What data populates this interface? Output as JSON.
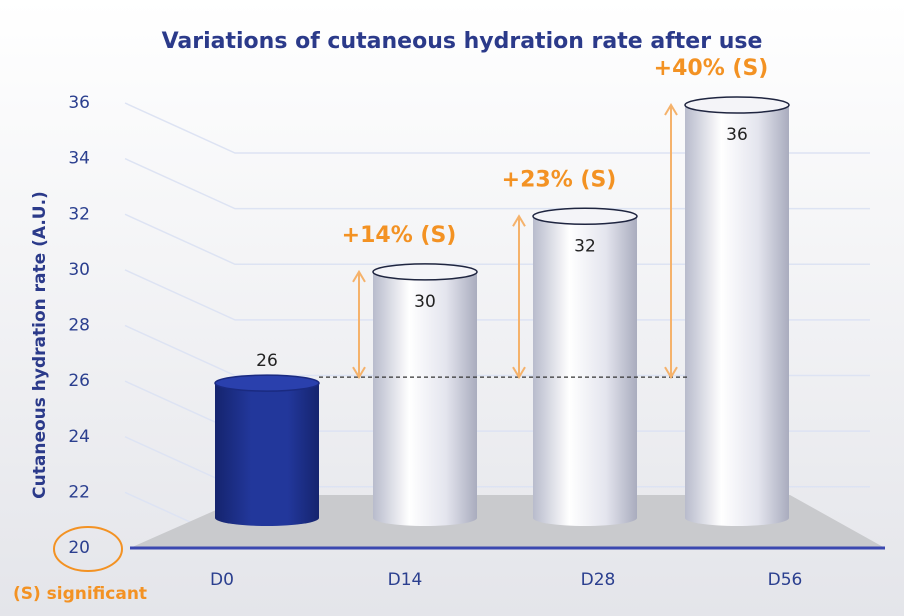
{
  "chart_data": {
    "type": "bar",
    "title": "Variations of cutaneous hydration rate after use",
    "y_label": "Cutaneous hydration rate (A.U.)",
    "categories": [
      "D0",
      "D14",
      "D28",
      "D56"
    ],
    "values": [
      26,
      30,
      32,
      36
    ],
    "colors": [
      "#22379b",
      "#e4e5ee",
      "#e4e5ee",
      "#e4e5ee"
    ],
    "annotations": [
      null,
      "+14% (S)",
      "+23% (S)",
      "+40% (S)"
    ],
    "note": "(S) significant",
    "ylim": [
      20,
      36
    ],
    "yticks": [
      20,
      22,
      24,
      26,
      28,
      30,
      32,
      34,
      36
    ],
    "grid": true
  }
}
